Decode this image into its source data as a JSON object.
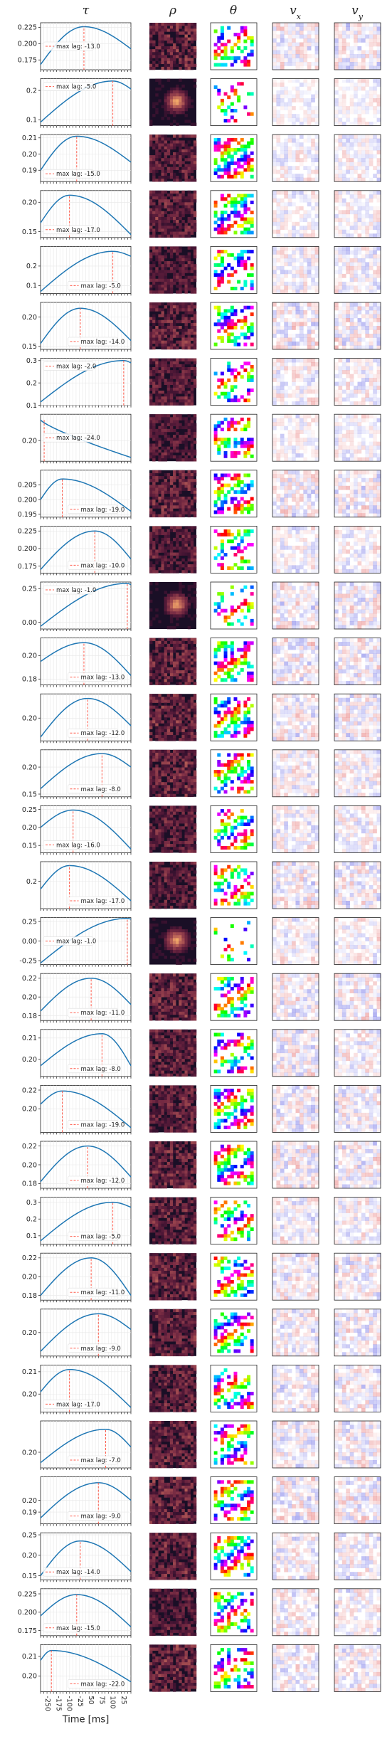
{
  "columns": [
    {
      "key": "tau",
      "label": "τ"
    },
    {
      "key": "rho",
      "label": "ρ"
    },
    {
      "key": "theta",
      "label": "θ"
    },
    {
      "key": "vx",
      "label": "v",
      "sub": "x"
    },
    {
      "key": "vy",
      "label": "v",
      "sub": "y"
    }
  ],
  "legend_prefix": "max lag: ",
  "colors": {
    "line": "#1f77b4",
    "lag_line": "#ff5a4a",
    "grid": "#e8e8e8",
    "rho_bg": "#1a0f26",
    "rho_hot": "#f2a97a",
    "vx_pos": "#e05050",
    "vx_neg": "#4a4ae0"
  },
  "chart_data": {
    "type": "line",
    "xlabel": "Time [ms]",
    "x": [
      -250,
      -240,
      -230,
      -220,
      -210,
      -200,
      -190,
      -180,
      -170,
      -160,
      -150,
      -140,
      -130,
      -120,
      -110,
      -100,
      -90,
      -80,
      -70,
      -60,
      -50,
      -40,
      -30,
      -20,
      -10,
      0,
      10,
      20,
      25
    ],
    "xtick_labels": [
      "-250",
      "-175",
      "-100",
      "-25",
      "50",
      "75",
      "100",
      "25"
    ],
    "rows": [
      {
        "lag": -13.0,
        "ylim": [
          0.16,
          0.232
        ],
        "yticks": [
          0.175,
          0.2,
          0.225
        ],
        "ytick_labels": [
          "0.175",
          "0.200",
          "0.225"
        ],
        "shape": "peak",
        "peak_y": 0.226,
        "start_y": 0.168,
        "end_y": 0.192,
        "legend": "mid",
        "rho_bright": 0.6,
        "theta_density": 0.5,
        "v_strength": 0.5
      },
      {
        "lag": -5.0,
        "ylim": [
          0.08,
          0.24
        ],
        "yticks": [
          0.1,
          0.2
        ],
        "ytick_labels": [
          "0.1",
          "0.2"
        ],
        "shape": "peak",
        "peak_y": 0.232,
        "start_y": 0.092,
        "end_y": 0.205,
        "legend": "top-left",
        "rho_bright": 0.35,
        "theta_density": 0.25,
        "v_strength": 0.3
      },
      {
        "lag": -15.0,
        "ylim": [
          0.183,
          0.212
        ],
        "yticks": [
          0.19,
          0.2,
          0.21
        ],
        "ytick_labels": [
          "0.19",
          "0.20",
          "0.21"
        ],
        "shape": "peak",
        "peak_y": 0.211,
        "start_y": 0.19,
        "end_y": 0.195,
        "legend": "bottom-left",
        "rho_bright": 0.55,
        "theta_density": 0.55,
        "v_strength": 0.4
      },
      {
        "lag": -17.0,
        "ylim": [
          0.14,
          0.22
        ],
        "yticks": [
          0.15,
          0.2
        ],
        "ytick_labels": [
          "0.15",
          "0.20"
        ],
        "shape": "peak",
        "peak_y": 0.212,
        "start_y": 0.165,
        "end_y": 0.145,
        "legend": "bottom-left",
        "rho_bright": 0.55,
        "theta_density": 0.5,
        "v_strength": 0.4
      },
      {
        "lag": -5.0,
        "ylim": [
          0.06,
          0.3
        ],
        "yticks": [
          0.1,
          0.2
        ],
        "ytick_labels": [
          "0.1",
          "0.2"
        ],
        "shape": "peak",
        "peak_y": 0.275,
        "start_y": 0.07,
        "end_y": 0.25,
        "legend": "bottom-mid",
        "rho_bright": 0.45,
        "theta_density": 0.35,
        "v_strength": 0.45
      },
      {
        "lag": -14.0,
        "ylim": [
          0.145,
          0.225
        ],
        "yticks": [
          0.15,
          0.2
        ],
        "ytick_labels": [
          "0.15",
          "0.20"
        ],
        "shape": "peak",
        "peak_y": 0.215,
        "start_y": 0.155,
        "end_y": 0.16,
        "legend": "bottom-mid",
        "rho_bright": 0.6,
        "theta_density": 0.5,
        "v_strength": 0.6
      },
      {
        "lag": -2.0,
        "ylim": [
          0.1,
          0.31
        ],
        "yticks": [
          0.1,
          0.2,
          0.3
        ],
        "ytick_labels": [
          "0.1",
          "0.2",
          "0.3"
        ],
        "shape": "peak",
        "peak_y": 0.3,
        "start_y": 0.115,
        "end_y": 0.29,
        "legend": "top-left",
        "rho_bright": 0.5,
        "theta_density": 0.35,
        "v_strength": 0.45
      },
      {
        "lag": -24.0,
        "ylim": [
          0.178,
          0.228
        ],
        "yticks": [
          0.2
        ],
        "ytick_labels": [
          "0.20"
        ],
        "shape": "decay",
        "peak_y": 0.222,
        "start_y": 0.222,
        "end_y": 0.182,
        "legend": "mid",
        "rho_bright": 0.45,
        "theta_density": 0.45,
        "v_strength": 0.35
      },
      {
        "lag": -19.0,
        "ylim": [
          0.194,
          0.21
        ],
        "yticks": [
          0.195,
          0.2,
          0.205
        ],
        "ytick_labels": [
          "0.195",
          "0.200",
          "0.205"
        ],
        "shape": "peak",
        "peak_y": 0.207,
        "start_y": 0.2,
        "end_y": 0.196,
        "legend": "bottom-mid",
        "rho_bright": 0.6,
        "theta_density": 0.5,
        "v_strength": 0.55
      },
      {
        "lag": -10.0,
        "ylim": [
          0.165,
          0.232
        ],
        "yticks": [
          0.175,
          0.2,
          0.225
        ],
        "ytick_labels": [
          "0.175",
          "0.200",
          "0.225"
        ],
        "shape": "peak",
        "peak_y": 0.225,
        "start_y": 0.17,
        "end_y": 0.185,
        "legend": "bottom-mid",
        "rho_bright": 0.5,
        "theta_density": 0.4,
        "v_strength": 0.4
      },
      {
        "lag": -1.0,
        "ylim": [
          -0.05,
          0.3
        ],
        "yticks": [
          0.0,
          0.25
        ],
        "ytick_labels": [
          "0.00",
          "0.25"
        ],
        "shape": "peak",
        "peak_y": 0.29,
        "start_y": -0.03,
        "end_y": 0.28,
        "legend": "top-left",
        "rho_bright": 0.4,
        "theta_density": 0.25,
        "v_strength": 0.55
      },
      {
        "lag": -13.0,
        "ylim": [
          0.175,
          0.215
        ],
        "yticks": [
          0.18,
          0.2
        ],
        "ytick_labels": [
          "0.18",
          "0.20"
        ],
        "shape": "peak",
        "peak_y": 0.211,
        "start_y": 0.195,
        "end_y": 0.183,
        "legend": "bottom-mid",
        "rho_bright": 0.6,
        "theta_density": 0.55,
        "v_strength": 0.6
      },
      {
        "lag": -12.0,
        "ylim": [
          0.17,
          0.232
        ],
        "yticks": [
          0.2
        ],
        "ytick_labels": [
          "0.20"
        ],
        "shape": "peak",
        "peak_y": 0.226,
        "start_y": 0.175,
        "end_y": 0.19,
        "legend": "bottom-mid",
        "rho_bright": 0.6,
        "theta_density": 0.5,
        "v_strength": 0.5
      },
      {
        "lag": -8.0,
        "ylim": [
          0.145,
          0.232
        ],
        "yticks": [
          0.15,
          0.2
        ],
        "ytick_labels": [
          "0.15",
          "0.20"
        ],
        "shape": "peak",
        "peak_y": 0.225,
        "start_y": 0.16,
        "end_y": 0.2,
        "legend": "bottom-mid",
        "rho_bright": 0.6,
        "theta_density": 0.5,
        "v_strength": 0.45
      },
      {
        "lag": -16.0,
        "ylim": [
          0.13,
          0.26
        ],
        "yticks": [
          0.15,
          0.2,
          0.25
        ],
        "ytick_labels": [
          "0.15",
          "0.20",
          "0.25"
        ],
        "shape": "peak",
        "peak_y": 0.248,
        "start_y": 0.2,
        "end_y": 0.14,
        "legend": "bottom-left",
        "rho_bright": 0.5,
        "theta_density": 0.45,
        "v_strength": 0.45
      },
      {
        "lag": -17.0,
        "ylim": [
          0.165,
          0.225
        ],
        "yticks": [
          0.2
        ],
        "ytick_labels": [
          "0.2"
        ],
        "shape": "peak",
        "peak_y": 0.22,
        "start_y": 0.19,
        "end_y": 0.175,
        "legend": "bottom-mid",
        "rho_bright": 0.5,
        "theta_density": 0.4,
        "v_strength": 0.55
      },
      {
        "lag": -1.0,
        "ylim": [
          -0.3,
          0.3
        ],
        "yticks": [
          -0.25,
          0.0,
          0.25
        ],
        "ytick_labels": [
          "-0.25",
          "0.00",
          "0.25"
        ],
        "shape": "peak",
        "peak_y": 0.29,
        "start_y": -0.28,
        "end_y": 0.28,
        "legend": "mid",
        "rho_bright": 0.35,
        "theta_density": 0.15,
        "v_strength": 0.4
      },
      {
        "lag": -11.0,
        "ylim": [
          0.175,
          0.225
        ],
        "yticks": [
          0.18,
          0.2,
          0.22
        ],
        "ytick_labels": [
          "0.18",
          "0.20",
          "0.22"
        ],
        "shape": "peak",
        "peak_y": 0.22,
        "start_y": 0.185,
        "end_y": 0.192,
        "legend": "bottom-mid",
        "rho_bright": 0.6,
        "theta_density": 0.5,
        "v_strength": 0.55
      },
      {
        "lag": -8.0,
        "ylim": [
          0.192,
          0.214
        ],
        "yticks": [
          0.2,
          0.21
        ],
        "ytick_labels": [
          "0.20",
          "0.21"
        ],
        "shape": "peak",
        "peak_y": 0.212,
        "start_y": 0.197,
        "end_y": 0.197,
        "legend": "bottom-mid",
        "rho_bright": 0.55,
        "theta_density": 0.5,
        "v_strength": 0.5
      },
      {
        "lag": -19.0,
        "ylim": [
          0.175,
          0.225
        ],
        "yticks": [
          0.2,
          0.22
        ],
        "ytick_labels": [
          "0.20",
          "0.22"
        ],
        "shape": "peak",
        "peak_y": 0.219,
        "start_y": 0.205,
        "end_y": 0.18,
        "legend": "bottom-mid",
        "rho_bright": 0.55,
        "theta_density": 0.5,
        "v_strength": 0.5
      },
      {
        "lag": -12.0,
        "ylim": [
          0.175,
          0.225
        ],
        "yticks": [
          0.18,
          0.2,
          0.22
        ],
        "ytick_labels": [
          "0.18",
          "0.20",
          "0.22"
        ],
        "shape": "peak",
        "peak_y": 0.22,
        "start_y": 0.182,
        "end_y": 0.187,
        "legend": "bottom-mid",
        "rho_bright": 0.6,
        "theta_density": 0.5,
        "v_strength": 0.55
      },
      {
        "lag": -5.0,
        "ylim": [
          0.05,
          0.33
        ],
        "yticks": [
          0.1,
          0.2,
          0.3
        ],
        "ytick_labels": [
          "0.1",
          "0.2",
          "0.3"
        ],
        "shape": "peak",
        "peak_y": 0.3,
        "start_y": 0.07,
        "end_y": 0.27,
        "legend": "bottom-mid",
        "rho_bright": 0.55,
        "theta_density": 0.35,
        "v_strength": 0.45
      },
      {
        "lag": -11.0,
        "ylim": [
          0.175,
          0.225
        ],
        "yticks": [
          0.18,
          0.2,
          0.22
        ],
        "ytick_labels": [
          "0.18",
          "0.20",
          "0.22"
        ],
        "shape": "peak",
        "peak_y": 0.22,
        "start_y": 0.18,
        "end_y": 0.18,
        "legend": "bottom-mid",
        "rho_bright": 0.6,
        "theta_density": 0.5,
        "v_strength": 0.55
      },
      {
        "lag": -9.0,
        "ylim": [
          0.185,
          0.215
        ],
        "yticks": [
          0.2
        ],
        "ytick_labels": [
          "0.20"
        ],
        "shape": "peak",
        "peak_y": 0.212,
        "start_y": 0.188,
        "end_y": 0.202,
        "legend": "bottom-mid",
        "rho_bright": 0.55,
        "theta_density": 0.45,
        "v_strength": 0.5
      },
      {
        "lag": -17.0,
        "ylim": [
          0.192,
          0.213
        ],
        "yticks": [
          0.2,
          0.21
        ],
        "ytick_labels": [
          "0.20",
          "0.21"
        ],
        "shape": "peak",
        "peak_y": 0.211,
        "start_y": 0.201,
        "end_y": 0.194,
        "legend": "bottom-left",
        "rho_bright": 0.55,
        "theta_density": 0.45,
        "v_strength": 0.5
      },
      {
        "lag": -7.0,
        "ylim": [
          0.185,
          0.23
        ],
        "yticks": [
          0.2
        ],
        "ytick_labels": [
          "0.20"
        ],
        "shape": "peak",
        "peak_y": 0.222,
        "start_y": 0.19,
        "end_y": 0.205,
        "legend": "bottom-mid",
        "rho_bright": 0.55,
        "theta_density": 0.5,
        "v_strength": 0.5
      },
      {
        "lag": -9.0,
        "ylim": [
          0.18,
          0.22
        ],
        "yticks": [
          0.19,
          0.2
        ],
        "ytick_labels": [
          "0.19",
          "0.20"
        ],
        "shape": "peak",
        "peak_y": 0.215,
        "start_y": 0.185,
        "end_y": 0.2,
        "legend": "bottom-mid",
        "rho_bright": 0.6,
        "theta_density": 0.5,
        "v_strength": 0.55
      },
      {
        "lag": -14.0,
        "ylim": [
          0.14,
          0.255
        ],
        "yticks": [
          0.15,
          0.2,
          0.25
        ],
        "ytick_labels": [
          "0.15",
          "0.20",
          "0.25"
        ],
        "shape": "peak",
        "peak_y": 0.235,
        "start_y": 0.15,
        "end_y": 0.16,
        "legend": "bottom-left",
        "rho_bright": 0.55,
        "theta_density": 0.5,
        "v_strength": 0.5
      },
      {
        "lag": -15.0,
        "ylim": [
          0.168,
          0.232
        ],
        "yticks": [
          0.175,
          0.2,
          0.225
        ],
        "ytick_labels": [
          "0.175",
          "0.200",
          "0.225"
        ],
        "shape": "peak",
        "peak_y": 0.224,
        "start_y": 0.195,
        "end_y": 0.18,
        "legend": "bottom-left",
        "rho_bright": 0.45,
        "theta_density": 0.45,
        "v_strength": 0.45
      },
      {
        "lag": -22.0,
        "ylim": [
          0.192,
          0.216
        ],
        "yticks": [
          0.2,
          0.21
        ],
        "ytick_labels": [
          "0.20",
          "0.21"
        ],
        "shape": "peak",
        "peak_y": 0.213,
        "start_y": 0.208,
        "end_y": 0.197,
        "legend": "bottom-mid",
        "rho_bright": 0.6,
        "theta_density": 0.5,
        "v_strength": 0.5
      }
    ]
  }
}
